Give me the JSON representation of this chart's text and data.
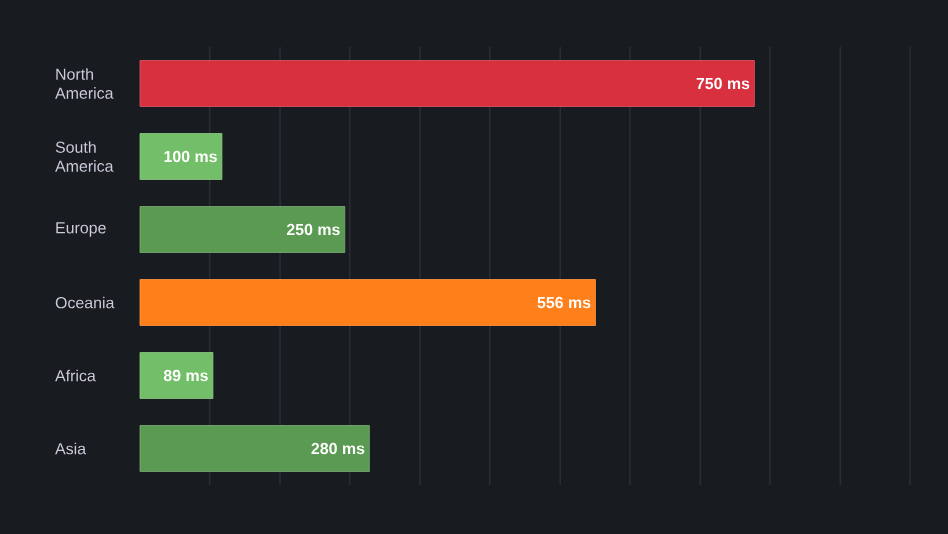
{
  "chart_data": {
    "type": "bar",
    "orientation": "horizontal",
    "categories": [
      "North America",
      "South America",
      "Europe",
      "Oceania",
      "Africa",
      "Asia"
    ],
    "values": [
      750,
      100,
      250,
      556,
      89,
      280
    ],
    "colors": [
      "#d8303f",
      "#73bf69",
      "#5a9a52",
      "#ff7f1a",
      "#73bf69",
      "#5a9a52"
    ],
    "value_labels": [
      "750 ms",
      "100 ms",
      "250 ms",
      "556 ms",
      "89 ms",
      "280 ms"
    ],
    "xlim": [
      0,
      940
    ],
    "xticks": [
      {
        "value": 85,
        "label": null
      },
      {
        "value": 171,
        "label": null
      },
      {
        "value": 256,
        "label": null
      },
      {
        "value": 342,
        "label": null
      },
      {
        "value": 427,
        "label": null
      },
      {
        "value": 513,
        "label": null
      },
      {
        "value": 598,
        "label": null
      },
      {
        "value": 684,
        "label": null
      },
      {
        "value": 769,
        "label": null
      },
      {
        "value": 855,
        "label": null
      },
      {
        "value": 940,
        "label": null
      }
    ],
    "grid": "x",
    "tick_labels": "y"
  }
}
